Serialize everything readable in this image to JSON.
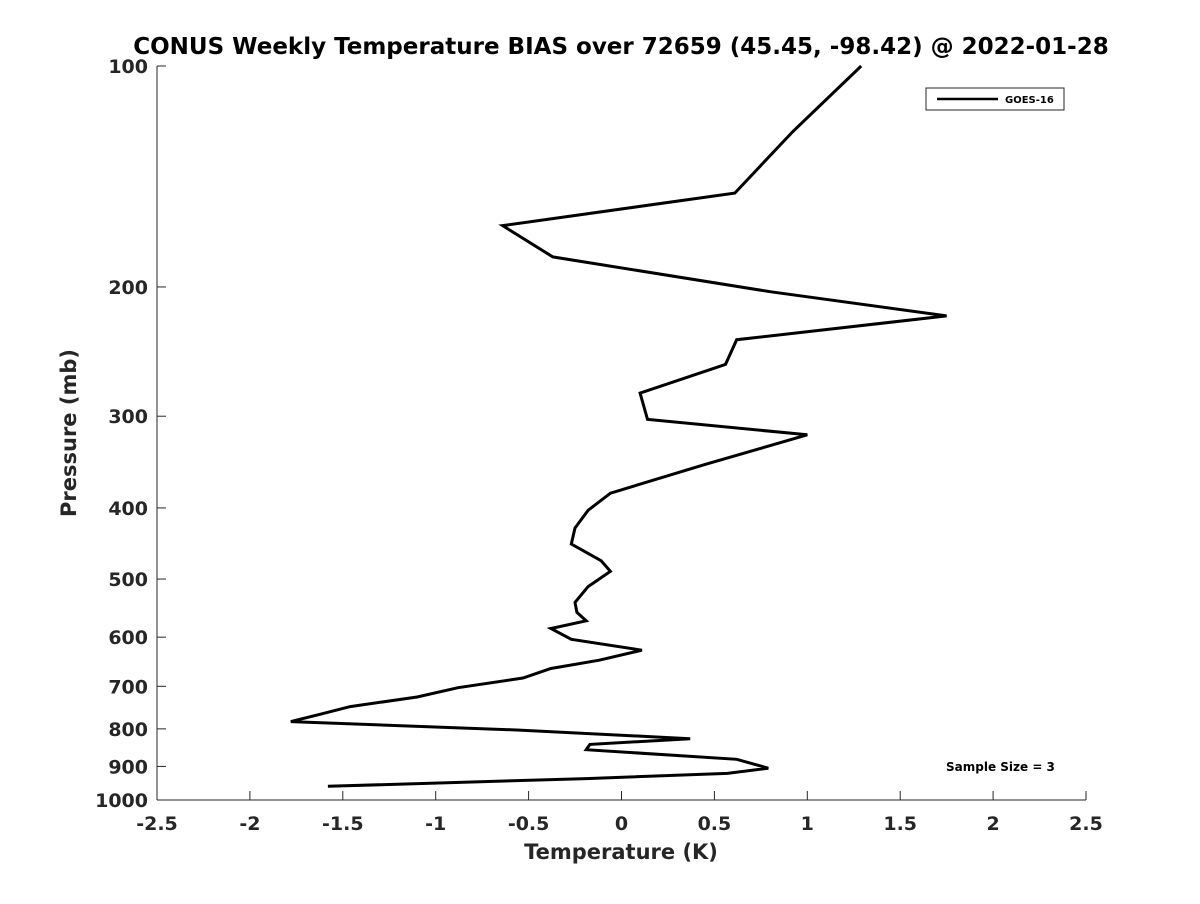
{
  "chart_data": {
    "type": "line",
    "title": "CONUS Weekly Temperature BIAS over 72659 (45.45, -98.42) @ 2022-01-28",
    "xlabel": "Temperature (K)",
    "ylabel": "Pressure (mb)",
    "xlim": [
      -2.5,
      2.5
    ],
    "ylim": [
      100,
      1000
    ],
    "y_scale": "log",
    "y_reversed": true,
    "grid": false,
    "legend_position": "top-right",
    "x_ticks": [
      -2.5,
      -2,
      -1.5,
      -1,
      -0.5,
      0,
      0.5,
      1,
      1.5,
      2,
      2.5
    ],
    "x_tick_labels": [
      "-2.5",
      "-2",
      "-1.5",
      "-1",
      "-0.5",
      "0",
      "0.5",
      "1",
      "1.5",
      "2",
      "2.5"
    ],
    "y_ticks": [
      100,
      200,
      300,
      400,
      500,
      600,
      700,
      800,
      900,
      1000
    ],
    "y_tick_labels": [
      "100",
      "200",
      "300",
      "400",
      "500",
      "600",
      "700",
      "800",
      "900",
      "1000"
    ],
    "annotation": "Sample Size = 3",
    "series": [
      {
        "name": "GOES-16",
        "color": "#000000",
        "points": [
          {
            "x": 1.29,
            "p": 100
          },
          {
            "x": 0.92,
            "p": 123
          },
          {
            "x": 0.61,
            "p": 149
          },
          {
            "x": -0.64,
            "p": 165
          },
          {
            "x": -0.37,
            "p": 182
          },
          {
            "x": 0.8,
            "p": 203
          },
          {
            "x": 1.75,
            "p": 219
          },
          {
            "x": 0.62,
            "p": 236
          },
          {
            "x": 0.56,
            "p": 255
          },
          {
            "x": 0.1,
            "p": 279
          },
          {
            "x": 0.14,
            "p": 303
          },
          {
            "x": 1.0,
            "p": 318
          },
          {
            "x": 0.45,
            "p": 349
          },
          {
            "x": -0.06,
            "p": 382
          },
          {
            "x": -0.18,
            "p": 403
          },
          {
            "x": -0.25,
            "p": 426
          },
          {
            "x": -0.27,
            "p": 448
          },
          {
            "x": -0.11,
            "p": 472
          },
          {
            "x": -0.06,
            "p": 488
          },
          {
            "x": -0.18,
            "p": 512
          },
          {
            "x": -0.25,
            "p": 538
          },
          {
            "x": -0.24,
            "p": 555
          },
          {
            "x": -0.19,
            "p": 570
          },
          {
            "x": -0.38,
            "p": 584
          },
          {
            "x": -0.27,
            "p": 604
          },
          {
            "x": 0.11,
            "p": 625
          },
          {
            "x": -0.12,
            "p": 645
          },
          {
            "x": -0.38,
            "p": 662
          },
          {
            "x": -0.53,
            "p": 682
          },
          {
            "x": -0.88,
            "p": 703
          },
          {
            "x": -1.1,
            "p": 724
          },
          {
            "x": -1.46,
            "p": 746
          },
          {
            "x": -1.62,
            "p": 764
          },
          {
            "x": -1.78,
            "p": 782
          },
          {
            "x": -0.55,
            "p": 803
          },
          {
            "x": 0.37,
            "p": 825
          },
          {
            "x": -0.17,
            "p": 840
          },
          {
            "x": -0.19,
            "p": 854
          },
          {
            "x": 0.62,
            "p": 880
          },
          {
            "x": 0.79,
            "p": 905
          },
          {
            "x": 0.57,
            "p": 920
          },
          {
            "x": -0.19,
            "p": 935
          },
          {
            "x": -1.58,
            "p": 958
          }
        ]
      }
    ]
  }
}
